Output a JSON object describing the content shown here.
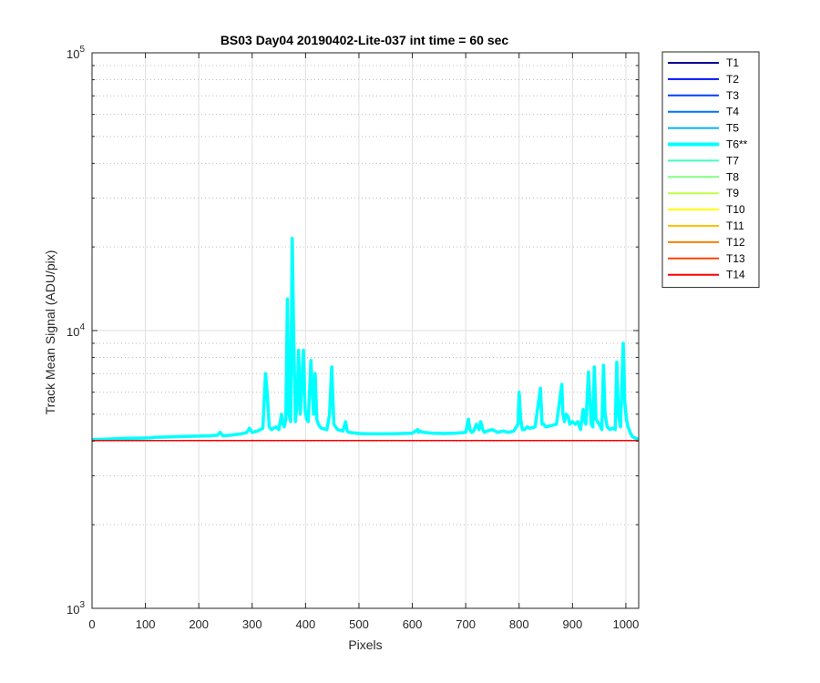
{
  "chart_data": {
    "type": "line",
    "title": "BS03 Day04 20190402-Lite-037 int time = 60 sec",
    "xlabel": "Pixels",
    "ylabel": "Track Mean Signal (ADU/pix)",
    "xlim": [
      0,
      1024
    ],
    "ylim": [
      1000,
      100000
    ],
    "yscale": "log",
    "xticks": [
      0,
      100,
      200,
      300,
      400,
      500,
      600,
      700,
      800,
      900,
      1000
    ],
    "xtick_labels": [
      "0",
      "100",
      "200",
      "300",
      "400",
      "500",
      "600",
      "700",
      "800",
      "900",
      "1000"
    ],
    "yticks_major": [
      1000,
      10000,
      100000
    ],
    "ytick_labels": [
      {
        "base": "10",
        "exp": "3"
      },
      {
        "base": "10",
        "exp": "4"
      },
      {
        "base": "10",
        "exp": "5"
      }
    ],
    "grid": true,
    "legend_position": "outside-right",
    "baseline": {
      "x": [
        0,
        1024
      ],
      "y": [
        4020,
        4020
      ]
    },
    "series": [
      {
        "name": "T1",
        "color": "#00008f"
      },
      {
        "name": "T2",
        "color": "#0010ff"
      },
      {
        "name": "T3",
        "color": "#0040ff"
      },
      {
        "name": "T4",
        "color": "#0070ff"
      },
      {
        "name": "T5",
        "color": "#00b0ff"
      },
      {
        "name": "T6**",
        "color": "#00ffff",
        "highlight": true,
        "x": [
          0,
          30,
          60,
          90,
          110,
          120,
          140,
          160,
          180,
          200,
          220,
          235,
          240,
          245,
          260,
          280,
          290,
          295,
          300,
          310,
          320,
          325,
          328,
          332,
          336,
          340,
          345,
          350,
          355,
          358,
          360,
          363,
          366,
          369,
          372,
          375,
          378,
          381,
          384,
          387,
          390,
          393,
          396,
          399,
          402,
          405,
          410,
          415,
          418,
          421,
          424,
          427,
          430,
          440,
          445,
          449,
          453,
          460,
          470,
          475,
          478,
          481,
          490,
          500,
          520,
          540,
          560,
          580,
          600,
          610,
          612,
          615,
          620,
          640,
          660,
          680,
          700,
          705,
          708,
          711,
          715,
          720,
          725,
          728,
          732,
          735,
          740,
          750,
          760,
          770,
          780,
          790,
          798,
          800,
          803,
          806,
          810,
          815,
          820,
          830,
          840,
          843,
          846,
          850,
          860,
          870,
          880,
          882,
          885,
          888,
          892,
          895,
          900,
          905,
          910,
          915,
          920,
          922,
          925,
          930,
          935,
          938,
          941,
          944,
          950,
          955,
          958,
          961,
          965,
          970,
          975,
          980,
          983,
          986,
          990,
          995,
          998,
          1001,
          1004,
          1008,
          1012,
          1018,
          1024
        ],
        "y": [
          4050,
          4070,
          4090,
          4100,
          4110,
          4130,
          4140,
          4150,
          4160,
          4170,
          4180,
          4200,
          4300,
          4180,
          4200,
          4250,
          4300,
          4450,
          4300,
          4350,
          4450,
          7000,
          6000,
          4500,
          4400,
          4450,
          4500,
          4400,
          5000,
          4600,
          4500,
          4800,
          13000,
          5000,
          4700,
          21500,
          9000,
          4700,
          5500,
          8500,
          5000,
          6500,
          8500,
          5200,
          4800,
          4700,
          7800,
          5000,
          7000,
          4800,
          4600,
          4500,
          4450,
          4400,
          5000,
          7400,
          4600,
          4400,
          4350,
          4700,
          4350,
          4300,
          4280,
          4260,
          4250,
          4250,
          4250,
          4260,
          4270,
          4400,
          4300,
          4350,
          4300,
          4270,
          4260,
          4270,
          4300,
          4800,
          4400,
          4300,
          4350,
          4600,
          4400,
          4700,
          4400,
          4300,
          4350,
          4400,
          4300,
          4350,
          4300,
          4350,
          4600,
          6000,
          4800,
          4400,
          4400,
          4500,
          4450,
          4500,
          6200,
          4600,
          4600,
          4500,
          4550,
          4600,
          6400,
          5000,
          4700,
          5000,
          4900,
          4600,
          4700,
          4600,
          4700,
          4400,
          5200,
          4800,
          4600,
          7100,
          4600,
          4500,
          7400,
          4800,
          4600,
          4400,
          7500,
          5000,
          4500,
          4400,
          4450,
          4400,
          7700,
          5000,
          4500,
          9000,
          5500,
          4800,
          4500,
          4300,
          4150,
          4100,
          4050
        ]
      },
      {
        "name": "T7",
        "color": "#40ffbf"
      },
      {
        "name": "T8",
        "color": "#80ff80"
      },
      {
        "name": "T9",
        "color": "#bfff40"
      },
      {
        "name": "T10",
        "color": "#ffff00"
      },
      {
        "name": "T11",
        "color": "#ffc000"
      },
      {
        "name": "T12",
        "color": "#ff8000"
      },
      {
        "name": "T13",
        "color": "#ff4000"
      },
      {
        "name": "T14",
        "color": "#ff0000"
      }
    ]
  }
}
